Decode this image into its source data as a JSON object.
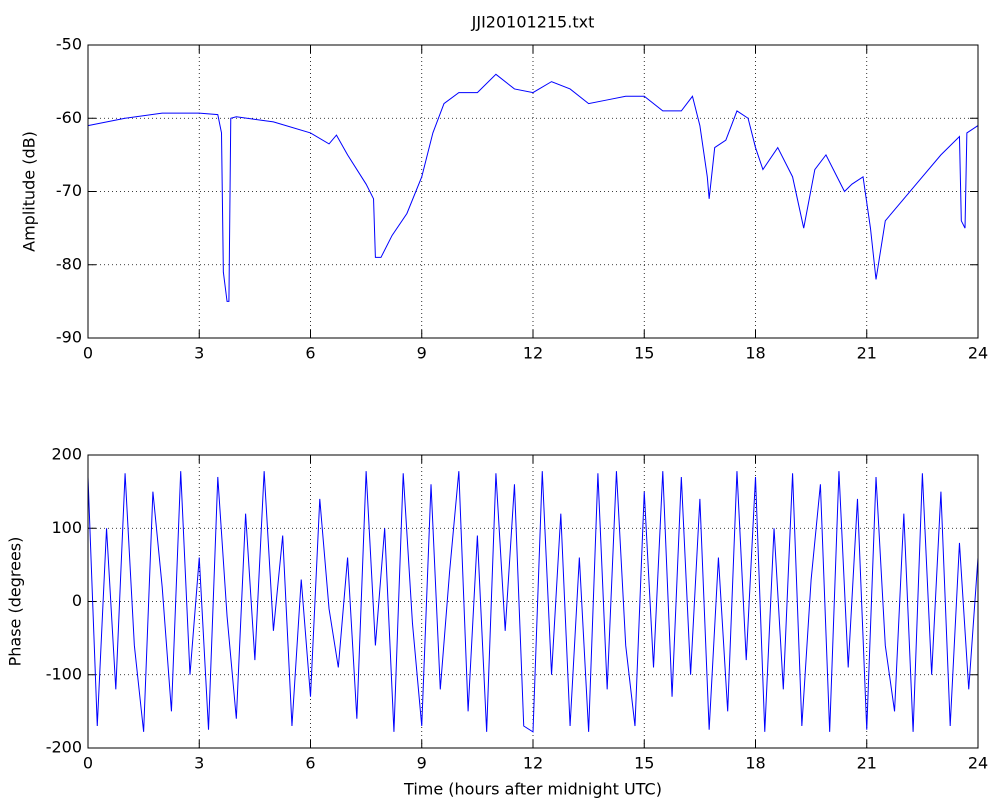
{
  "chart_data": [
    {
      "type": "line",
      "title": "JJI20101215.txt",
      "ylabel": "Amplitude (dB)",
      "color": "#0000ff",
      "grid": true,
      "x": [
        0,
        1,
        2,
        3,
        3.5,
        3.6,
        3.65,
        3.75,
        3.8,
        3.85,
        4,
        5,
        6,
        6.5,
        6.7,
        7,
        7.5,
        7.7,
        7.75,
        7.9,
        8.2,
        8.6,
        9,
        9.3,
        9.6,
        10,
        10.5,
        11,
        11.5,
        12,
        12.5,
        13,
        13.5,
        14,
        14.5,
        15,
        15.5,
        16,
        16.3,
        16.5,
        16.7,
        16.75,
        16.9,
        17.2,
        17.5,
        17.8,
        18,
        18.2,
        18.6,
        19,
        19.3,
        19.6,
        19.9,
        20.2,
        20.4,
        20.6,
        20.9,
        21.1,
        21.25,
        21.5,
        22,
        22.5,
        23,
        23.5,
        23.55,
        23.65,
        23.7,
        24
      ],
      "values": [
        -61,
        -60,
        -59.3,
        -59.3,
        -59.5,
        -62,
        -81,
        -85,
        -85,
        -60,
        -59.8,
        -60.5,
        -62,
        -63.5,
        -62.3,
        -65,
        -69,
        -71,
        -79,
        -79,
        -76,
        -73,
        -68,
        -62,
        -58,
        -56.5,
        -56.5,
        -54,
        -56,
        -56.5,
        -55,
        -56,
        -58,
        -57.5,
        -57,
        -57,
        -59,
        -59,
        -57,
        -61,
        -68,
        -71,
        -64,
        -63,
        -59,
        -60,
        -64,
        -67,
        -64,
        -68,
        -75,
        -67,
        -65,
        -68,
        -70,
        -69,
        -68,
        -75,
        -82,
        -74,
        -71,
        -68,
        -65,
        -62.5,
        -74,
        -75,
        -62,
        -61
      ],
      "xlim": [
        0,
        24
      ],
      "xticks": [
        0,
        3,
        6,
        9,
        12,
        15,
        18,
        21,
        24
      ],
      "ylim": [
        -90,
        -50
      ],
      "yticks": [
        -90,
        -80,
        -70,
        -60,
        -50
      ]
    },
    {
      "type": "line",
      "xlabel": "Time (hours after midnight UTC)",
      "ylabel": "Phase (degrees)",
      "color": "#0000ff",
      "grid": true,
      "x": [
        0,
        0.25,
        0.5,
        0.75,
        1,
        1.25,
        1.5,
        1.75,
        2,
        2.25,
        2.5,
        2.75,
        3,
        3.25,
        3.5,
        3.75,
        4,
        4.25,
        4.5,
        4.75,
        5,
        5.25,
        5.5,
        5.75,
        6,
        6.25,
        6.5,
        6.75,
        7,
        7.25,
        7.5,
        7.75,
        8,
        8.25,
        8.5,
        8.75,
        9,
        9.25,
        9.5,
        9.75,
        10,
        10.25,
        10.5,
        10.75,
        11,
        11.25,
        11.5,
        11.75,
        12,
        12.25,
        12.5,
        12.75,
        13,
        13.25,
        13.5,
        13.75,
        14,
        14.25,
        14.5,
        14.75,
        15,
        15.25,
        15.5,
        15.75,
        16,
        16.25,
        16.5,
        16.75,
        17,
        17.25,
        17.5,
        17.75,
        18,
        18.25,
        18.5,
        18.75,
        19,
        19.25,
        19.5,
        19.75,
        20,
        20.25,
        20.5,
        20.75,
        21,
        21.25,
        21.5,
        21.75,
        22,
        22.25,
        22.5,
        22.75,
        23,
        23.25,
        23.5,
        23.75,
        24
      ],
      "values": [
        170,
        -170,
        100,
        -120,
        175,
        -60,
        -178,
        150,
        20,
        -150,
        178,
        -100,
        60,
        -175,
        170,
        -20,
        -160,
        120,
        -80,
        178,
        -40,
        90,
        -170,
        30,
        -130,
        140,
        -10,
        -90,
        60,
        -160,
        178,
        -60,
        100,
        -178,
        175,
        -30,
        -170,
        160,
        -120,
        40,
        178,
        -150,
        90,
        -178,
        175,
        -40,
        160,
        -170,
        -178,
        178,
        -100,
        120,
        -170,
        60,
        -178,
        175,
        -120,
        178,
        -60,
        -170,
        150,
        -90,
        178,
        -130,
        170,
        -100,
        140,
        -175,
        60,
        -150,
        178,
        -80,
        170,
        -178,
        100,
        -120,
        175,
        -170,
        30,
        160,
        -178,
        178,
        -90,
        140,
        -175,
        170,
        -60,
        -150,
        120,
        -178,
        175,
        -100,
        150,
        -170,
        80,
        -120,
        60
      ],
      "xlim": [
        0,
        24
      ],
      "xticks": [
        0,
        3,
        6,
        9,
        12,
        15,
        18,
        21,
        24
      ],
      "ylim": [
        -200,
        200
      ],
      "yticks": [
        -200,
        -100,
        0,
        100,
        200
      ]
    }
  ]
}
